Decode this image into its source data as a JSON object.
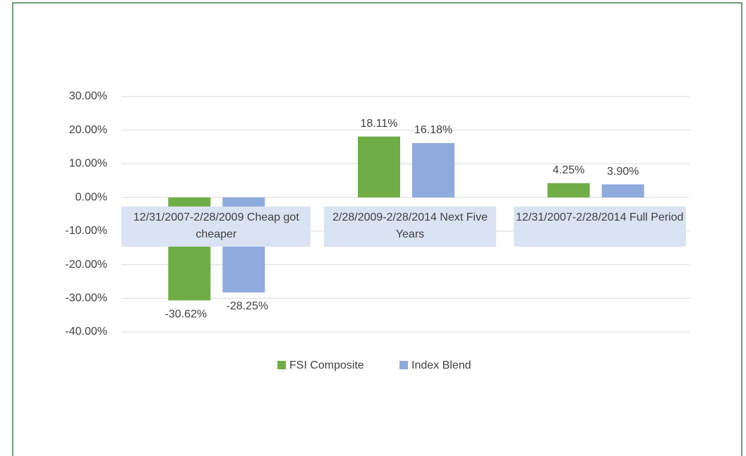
{
  "chart_data": {
    "type": "bar",
    "categories": [
      "12/31/2007-2/28/2009 Cheap got cheaper",
      "2/28/2009-2/28/2014 Next Five Years",
      "12/31/2007-2/28/2014 Full Period"
    ],
    "series": [
      {
        "name": "FSI Composite",
        "color": "#70ad47",
        "values": [
          -30.62,
          18.11,
          4.25
        ],
        "value_labels": [
          "-30.62%",
          "18.11%",
          "4.25%"
        ]
      },
      {
        "name": "Index Blend",
        "color": "#8faadc",
        "values": [
          -28.25,
          16.18,
          3.9
        ],
        "value_labels": [
          "-28.25%",
          "16.18%",
          "3.90%"
        ]
      }
    ],
    "ylim": [
      -40,
      30
    ],
    "yticks": [
      {
        "value": -40,
        "label": "-40.00%"
      },
      {
        "value": -30,
        "label": "-30.00%"
      },
      {
        "value": -20,
        "label": "-20.00%"
      },
      {
        "value": -10,
        "label": "-10.00%"
      },
      {
        "value": 0,
        "label": "0.00%"
      },
      {
        "value": 10,
        "label": "10.00%"
      },
      {
        "value": 20,
        "label": "20.00%"
      },
      {
        "value": 30,
        "label": "30.00%"
      }
    ],
    "grid": true,
    "legend": "bottom"
  }
}
